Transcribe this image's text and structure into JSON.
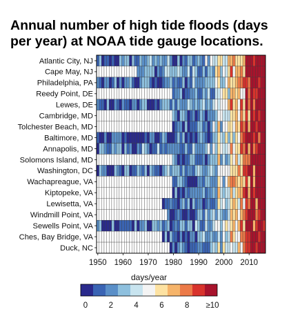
{
  "title_lines": [
    "Annual number of high tide floods (days",
    "per year) at NOAA tide gauge locations."
  ],
  "colors": {
    "empty": "#ffffff",
    "scale": [
      "#2a2a8c",
      "#3a64b4",
      "#5a8fc8",
      "#8ec0de",
      "#c8e4ef",
      "#f4f4f4",
      "#fde2a2",
      "#f6b46a",
      "#ec7a48",
      "#d8332c",
      "#a8132c"
    ]
  },
  "chart_data": {
    "type": "heatmap",
    "title": "Annual number of high tide floods (days per year) at NOAA tide gauge locations.",
    "x_tick_labels": [
      "1950",
      "1960",
      "1970",
      "1980",
      "1990",
      "2000",
      "2010"
    ],
    "xlim": [
      1950,
      2016
    ],
    "colorbar": {
      "label": "days/year",
      "tick_labels": [
        "0",
        "2",
        "4",
        "6",
        "8",
        "≥10"
      ],
      "range": [
        0,
        10
      ]
    },
    "stations": [
      {
        "name": "Atlantic City, NJ",
        "start": 1950,
        "level": 1.5
      },
      {
        "name": "Cape May, NJ",
        "start": 1966,
        "level": 1.5
      },
      {
        "name": "Philadelphia, PA",
        "start": 1950,
        "level": 1.2
      },
      {
        "name": "Reedy Point, DE",
        "start": 1980,
        "level": 0.8
      },
      {
        "name": "Lewes, DE",
        "start": 1950,
        "level": 1.0
      },
      {
        "name": "Cambridge, MD",
        "start": 1980,
        "level": 0.8
      },
      {
        "name": "Tolchester Beach, MD",
        "start": 1980,
        "level": 0.7
      },
      {
        "name": "Baltimore, MD",
        "start": 1950,
        "level": 0.5
      },
      {
        "name": "Annapolis, MD",
        "start": 1950,
        "level": 1.8
      },
      {
        "name": "Solomons Island, MD",
        "start": 1980,
        "level": 0.6
      },
      {
        "name": "Washington, DC",
        "start": 1950,
        "level": 1.2
      },
      {
        "name": "Wachapreague, VA",
        "start": 1980,
        "level": 1.0
      },
      {
        "name": "Kiptopeke, VA",
        "start": 1980,
        "level": 0.9
      },
      {
        "name": "Lewisetta, VA",
        "start": 1976,
        "level": 0.6
      },
      {
        "name": "Windmill Point, VA",
        "start": 1978,
        "level": 0.5
      },
      {
        "name": "Sewells Point, VA",
        "start": 1950,
        "level": 1.0
      },
      {
        "name": "Ches, Bay Bridge, VA",
        "start": 1976,
        "level": 0.8
      },
      {
        "name": "Duck, NC",
        "start": 1979,
        "level": 0.5
      }
    ]
  }
}
